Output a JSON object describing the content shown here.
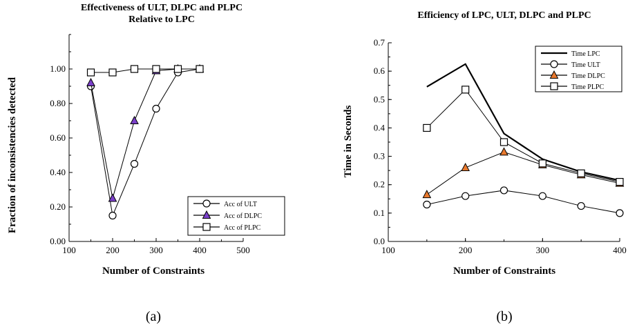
{
  "colors": {
    "dlpc_fill": "#7a3fc9",
    "dlpc_fill_b": "#e8792e",
    "line": "#000000",
    "marker_fill": "#ffffff"
  },
  "panel_labels": [
    "(a)",
    "(b)"
  ],
  "chart_data": [
    {
      "type": "line",
      "title_lines": [
        "Effectiveness of ULT, DLPC and PLPC",
        "Relative to LPC"
      ],
      "xlabel": "Number of Constraints",
      "ylabel": "Fraction of inconsistencies detected",
      "xlim": [
        100,
        500
      ],
      "ylim": [
        0,
        1.2
      ],
      "xticks": [
        100,
        200,
        300,
        400,
        500
      ],
      "xtick_labels": [
        "100",
        "200",
        "300",
        "400",
        "500"
      ],
      "yticks": [
        0,
        0.2,
        0.4,
        0.6,
        0.8,
        1.0
      ],
      "ytick_labels": [
        "0.00",
        "0.20",
        "0.40",
        "0.60",
        "0.80",
        "1.00"
      ],
      "grid": false,
      "legend_position": "bottom-right",
      "series": [
        {
          "name": "Acc of ULT",
          "marker": "circle",
          "x": [
            150,
            200,
            250,
            300,
            350,
            400
          ],
          "values": [
            0.9,
            0.15,
            0.45,
            0.77,
            0.98,
            1.0
          ]
        },
        {
          "name": "Acc of DLPC",
          "marker": "triangle",
          "x": [
            150,
            200,
            250,
            300,
            350,
            400
          ],
          "values": [
            0.92,
            0.25,
            0.7,
            0.99,
            1.0,
            1.0
          ]
        },
        {
          "name": "Acc of PLPC",
          "marker": "square",
          "x": [
            150,
            200,
            250,
            300,
            350,
            400
          ],
          "values": [
            0.98,
            0.98,
            1.0,
            1.0,
            1.0,
            1.0
          ]
        }
      ]
    },
    {
      "type": "line",
      "title_lines": [
        "Efficiency of LPC, ULT, DLPC and PLPC"
      ],
      "xlabel": "Number of Constraints",
      "ylabel": "Time in Seconds",
      "xlim": [
        100,
        400
      ],
      "ylim": [
        0,
        0.7
      ],
      "xticks": [
        100,
        200,
        300,
        400
      ],
      "xtick_labels": [
        "100",
        "200",
        "300",
        "400"
      ],
      "yticks": [
        0,
        0.1,
        0.2,
        0.3,
        0.4,
        0.5,
        0.6,
        0.7
      ],
      "ytick_labels": [
        "0.0",
        "0.1",
        "0.2",
        "0.3",
        "0.4",
        "0.5",
        "0.6",
        "0.7"
      ],
      "grid": false,
      "legend_position": "top-right",
      "series": [
        {
          "name": "Time LPC",
          "marker": "none",
          "x": [
            150,
            200,
            250,
            300,
            350,
            400
          ],
          "values": [
            0.545,
            0.625,
            0.38,
            0.29,
            0.245,
            0.215
          ]
        },
        {
          "name": "Time ULT",
          "marker": "circle",
          "x": [
            150,
            200,
            250,
            300,
            350,
            400
          ],
          "values": [
            0.13,
            0.16,
            0.18,
            0.16,
            0.125,
            0.1
          ]
        },
        {
          "name": "Time DLPC",
          "marker": "triangle",
          "x": [
            150,
            200,
            250,
            300,
            350,
            400
          ],
          "values": [
            0.165,
            0.26,
            0.315,
            0.27,
            0.235,
            0.205
          ]
        },
        {
          "name": "Time PLPC",
          "marker": "square",
          "x": [
            150,
            200,
            250,
            300,
            350,
            400
          ],
          "values": [
            0.4,
            0.535,
            0.35,
            0.275,
            0.24,
            0.21
          ]
        }
      ]
    }
  ]
}
